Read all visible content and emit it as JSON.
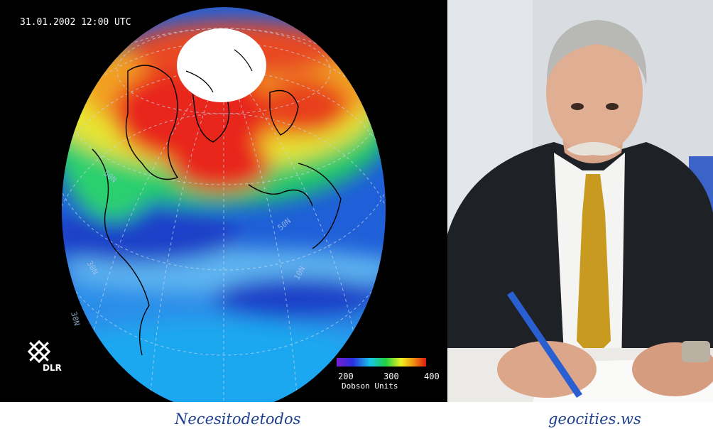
{
  "globe": {
    "timestamp": "31.01.2002 12:00 UTC",
    "logo_text": "DLR",
    "colorbar": {
      "tick_min": "200",
      "tick_mid": "300",
      "tick_max": "400",
      "units": "Dobson Units"
    },
    "latitude_labels": [
      "50N",
      "30N",
      "10N",
      "50N",
      "30N"
    ],
    "colors": {
      "background": "#000000",
      "low": "#1f5fd8",
      "mid": "#22c96a",
      "high": "#e8261a",
      "cap": "#ffffff"
    }
  },
  "photo": {
    "colors": {
      "wall": "#d9dde2",
      "suit": "#1e2126",
      "shirt": "#f4f4f2",
      "tie": "#c99a20",
      "pen": "#2a5fd1"
    }
  },
  "captions": {
    "left": "Necesitodetodos",
    "right": "geocities.ws"
  }
}
